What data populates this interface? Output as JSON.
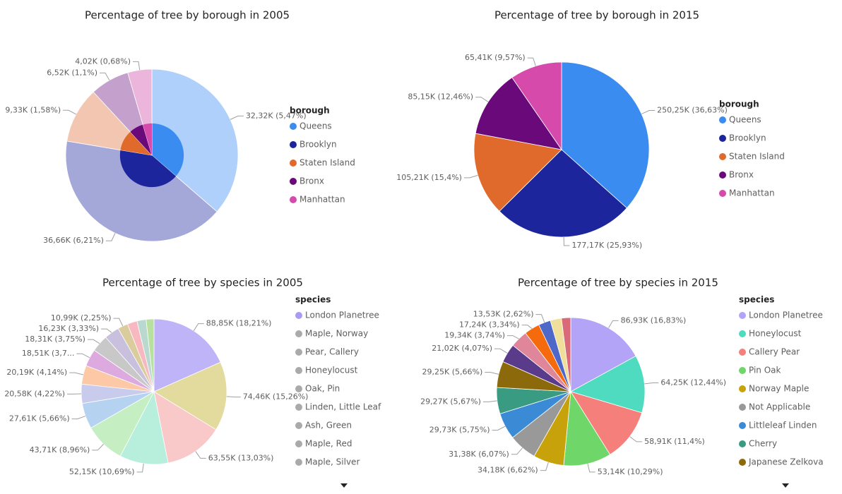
{
  "chart_data": [
    {
      "type": "pie",
      "title": "Percentage of tree by borough in 2005",
      "legend_title": "borough",
      "legend": "right",
      "categories": [
        "Queens",
        "Brooklyn",
        "Staten Island",
        "Bronx",
        "Manhattan"
      ],
      "values": [
        32320,
        36660,
        9330,
        6520,
        4020
      ],
      "value_labels": [
        "32,32K (5,47%)",
        "36,66K (6,21%)",
        "9,33K (1,58%)",
        "6,52K (1,1%)",
        "4,02K (0,68%)"
      ],
      "colors": [
        "#b0d0fc",
        "#a3a8d9",
        "#f2c6b0",
        "#c4a0cc",
        "#ecb6dc"
      ],
      "highlight_colors": [
        "#3a8cf0",
        "#1c259c",
        "#e06a2c",
        "#6a0a7a",
        "#d54aab"
      ]
    },
    {
      "type": "pie",
      "title": "Percentage of tree by borough in 2015",
      "legend_title": "borough",
      "legend": "right",
      "categories": [
        "Queens",
        "Brooklyn",
        "Staten Island",
        "Bronx",
        "Manhattan"
      ],
      "values": [
        250250,
        177170,
        105210,
        85150,
        65410
      ],
      "value_labels": [
        "250,25K (36,63%)",
        "177,17K (25,93%)",
        "105,21K (15,4%)",
        "85,15K (12,46%)",
        "65,41K (9,57%)"
      ],
      "colors": [
        "#3a8cf0",
        "#1c259c",
        "#e06a2c",
        "#6a0a7a",
        "#d54aab"
      ]
    },
    {
      "type": "pie",
      "title": "Percentage of tree by species in 2005",
      "legend_title": "species",
      "legend": "right",
      "categories": [
        "London Planetree",
        "Maple, Norway",
        "Pear, Callery",
        "Honeylocust",
        "Oak, Pin",
        "Linden, Little Leaf",
        "Ash, Green",
        "Maple, Red",
        "Maple, Silver",
        null,
        null,
        null,
        null,
        null,
        null
      ],
      "values": [
        88850,
        74460,
        63550,
        52150,
        43710,
        27610,
        20580,
        20190,
        18510,
        18310,
        16230,
        10990,
        10500,
        9800,
        8400
      ],
      "value_labels": [
        "88,85K (18,21%)",
        "74,46K (15,26%)",
        "63,55K (13,03%)",
        "52,15K (10,69%)",
        "43,71K (8,96%)",
        "27,61K (5,66%)",
        "20,58K (4,22%)",
        "20,19K (4,14%)",
        "18,51K (3,7...",
        "18,31K (3,75%)",
        "16,23K (3,33%)",
        "10,99K (2,25%)",
        null,
        null,
        null
      ],
      "colors": [
        "#c0b4f8",
        "#e3db9e",
        "#f9c8c8",
        "#b8efdc",
        "#c5efc2",
        "#b5d3f0",
        "#c8cbec",
        "#fcc8a6",
        "#dcaade",
        "#c8c8c8",
        "#c8c0dc",
        "#dacc9c",
        "#f8b8c0",
        "#b8d8d0",
        "#b8e0a0"
      ],
      "legend_colors": [
        "#a99af5",
        "#aaaaaa",
        "#aaaaaa",
        "#aaaaaa",
        "#aaaaaa",
        "#aaaaaa",
        "#aaaaaa",
        "#aaaaaa",
        "#aaaaaa"
      ]
    },
    {
      "type": "pie",
      "title": "Percentage of tree by species in 2015",
      "legend_title": "species",
      "legend": "right",
      "categories": [
        "London Planetree",
        "Honeylocust",
        "Callery Pear",
        "Pin Oak",
        "Norway Maple",
        "Not Applicable",
        "Littleleaf Linden",
        "Cherry",
        "Japanese Zelkova",
        null,
        null,
        null,
        null,
        null,
        null
      ],
      "values": [
        86930,
        64250,
        58910,
        53140,
        34180,
        31380,
        29730,
        29270,
        29250,
        21020,
        19340,
        17240,
        13530,
        12400,
        10300
      ],
      "value_labels": [
        "86,93K (16,83%)",
        "64,25K (12,44%)",
        "58,91K (11,4%)",
        "53,14K (10,29%)",
        "34,18K (6,62%)",
        "31,38K (6,07%)",
        "29,73K (5,75%)",
        "29,27K (5,67%)",
        "29,25K (5,66%)",
        "21,02K (4,07%)",
        "19,34K (3,74%)",
        "17,24K (3,34%)",
        "13,53K (2,62%)",
        null,
        null
      ],
      "colors": [
        "#b3a4f7",
        "#4edbbf",
        "#f47f7b",
        "#6fd66a",
        "#c8a20a",
        "#999999",
        "#3b8ad6",
        "#3a9b83",
        "#8c6a0c",
        "#5a3a8a",
        "#e0869a",
        "#f56a0c",
        "#4e68c9",
        "#f0df9a",
        "#d86a7a"
      ]
    }
  ]
}
